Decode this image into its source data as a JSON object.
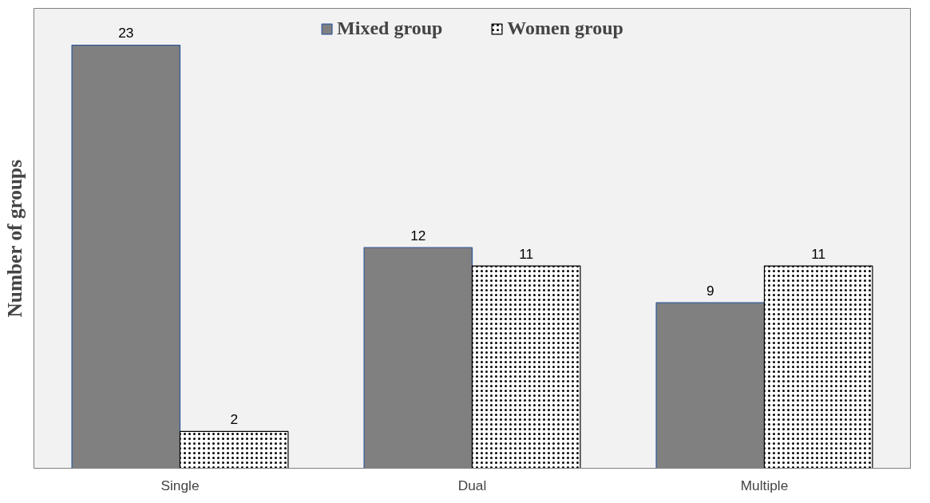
{
  "chart_data": {
    "type": "bar",
    "ylabel": "Number of groups",
    "categories": [
      "Single",
      "Dual",
      "Multiple"
    ],
    "series": [
      {
        "name": "Mixed group",
        "color": "#808080",
        "values": [
          23,
          12,
          9
        ]
      },
      {
        "name": "Women group",
        "color": "#ffffff",
        "values": [
          2,
          11,
          11
        ]
      }
    ],
    "ylim": [
      0,
      25
    ],
    "data_labels": true,
    "legend": "top",
    "relative": false
  }
}
